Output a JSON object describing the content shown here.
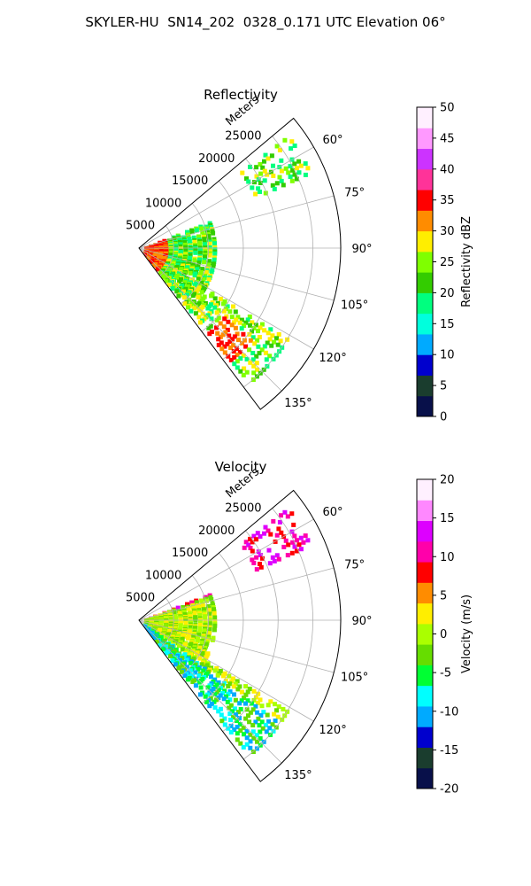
{
  "title": "SKYLER-HU  SN14_202  0328_0.171 UTC Elevation 06°",
  "chart_data": [
    {
      "type": "polar-sector",
      "title": "Reflectivity",
      "r_label": "Meters",
      "r_ticks": [
        "5000",
        "10000",
        "15000",
        "20000",
        "25000"
      ],
      "r_max": 29000,
      "theta_ticks": [
        "60°",
        "75°",
        "90°",
        "105°",
        "120°",
        "135°"
      ],
      "theta_range": [
        50,
        143
      ],
      "grid": true,
      "colorbar": {
        "label": "Reflectivity dBZ",
        "range": [
          0,
          50
        ],
        "ticks": [
          "0",
          "5",
          "10",
          "15",
          "20",
          "25",
          "30",
          "35",
          "40",
          "45",
          "50"
        ]
      },
      "colors": [
        "#08104a",
        "#1a3d2e",
        "#0000cd",
        "#00aaff",
        "#00ffdd",
        "#00ff7f",
        "#33cc00",
        "#7fff00",
        "#ffee00",
        "#ff8c00",
        "#ff0000",
        "#ff3399",
        "#cc33ff",
        "#ff99ff",
        "#fff0ff"
      ]
    },
    {
      "type": "polar-sector",
      "title": "Velocity",
      "r_label": "Meters",
      "r_ticks": [
        "5000",
        "10000",
        "15000",
        "20000",
        "25000"
      ],
      "r_max": 29000,
      "theta_ticks": [
        "60°",
        "75°",
        "90°",
        "105°",
        "120°",
        "135°"
      ],
      "theta_range": [
        50,
        143
      ],
      "grid": true,
      "colorbar": {
        "label": "Velocity (m/s)",
        "range": [
          -20,
          20
        ],
        "ticks": [
          "-20",
          "-15",
          "-10",
          "-5",
          "0",
          "5",
          "10",
          "15",
          "20"
        ]
      },
      "colors": [
        "#08104a",
        "#1a3d2e",
        "#0000cd",
        "#00aaff",
        "#00ffff",
        "#00ff33",
        "#66dd00",
        "#aaff00",
        "#ffee00",
        "#ff8c00",
        "#ff0000",
        "#ff00aa",
        "#dd00ff",
        "#ff88ff",
        "#fff0ff"
      ]
    }
  ]
}
